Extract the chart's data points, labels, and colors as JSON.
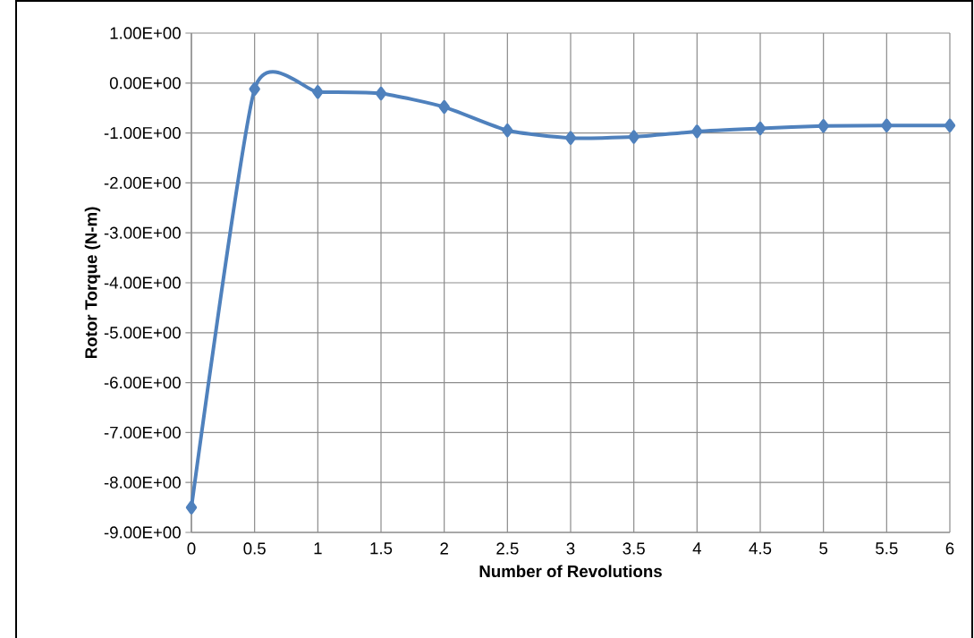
{
  "chart_data": {
    "type": "line",
    "xlabel": "Number of Revolutions",
    "ylabel": "Rotor Torque (N-m)",
    "x": [
      0,
      0.5,
      1,
      1.5,
      2,
      2.5,
      3,
      3.5,
      4,
      4.5,
      5,
      5.5,
      6
    ],
    "values": [
      -8.5,
      -0.12,
      -0.18,
      -0.21,
      -0.48,
      -0.95,
      -1.1,
      -1.08,
      -0.97,
      -0.91,
      -0.86,
      -0.85,
      -0.85
    ],
    "color": "#4f81bd",
    "marker": "diamond",
    "line_style": "solid",
    "grid": true,
    "xlim": [
      0,
      6
    ],
    "ylim": [
      -9,
      1
    ],
    "xticks": [
      0,
      0.5,
      1,
      1.5,
      2,
      2.5,
      3,
      3.5,
      4,
      4.5,
      5,
      5.5,
      6
    ],
    "yticks": [
      {
        "value": 1,
        "label": "1.00E+00"
      },
      {
        "value": 0,
        "label": "0.00E+00"
      },
      {
        "value": -1,
        "label": "-1.00E+00"
      },
      {
        "value": -2,
        "label": "-2.00E+00"
      },
      {
        "value": -3,
        "label": "-3.00E+00"
      },
      {
        "value": -4,
        "label": "-4.00E+00"
      },
      {
        "value": -5,
        "label": "-5.00E+00"
      },
      {
        "value": -6,
        "label": "-6.00E+00"
      },
      {
        "value": -7,
        "label": "-7.00E+00"
      },
      {
        "value": -8,
        "label": "-8.00E+00"
      },
      {
        "value": -9,
        "label": "-9.00E+00"
      }
    ]
  }
}
